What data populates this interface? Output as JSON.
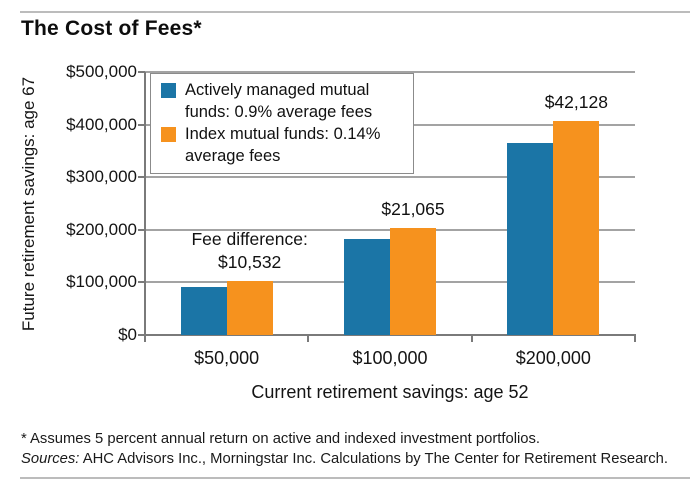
{
  "title": "The Cost of Fees*",
  "colors": {
    "active_bar": "#1b75a6",
    "index_bar": "#f6921e",
    "gridline": "#a3a3a3",
    "axis": "#7a7a7a",
    "rule": "#bcbcbc",
    "text": "#1a1a1a"
  },
  "chart_data": {
    "type": "bar",
    "title": "The Cost of Fees*",
    "categories": [
      "$50,000",
      "$100,000",
      "$200,000"
    ],
    "series": [
      {
        "name": "Actively managed mutual funds: 0.9% average fees",
        "color": "#1b75a6",
        "values": [
          91324,
          182648,
          365296
        ]
      },
      {
        "name": "Index mutual funds: 0.14% average fees",
        "color": "#f6921e",
        "values": [
          101856,
          203713,
          407424
        ]
      }
    ],
    "annotations": [
      {
        "group": 0,
        "lines": [
          "Fee difference:",
          "$10,532"
        ]
      },
      {
        "group": 1,
        "lines": [
          "$21,065"
        ]
      },
      {
        "group": 2,
        "lines": [
          "$42,128"
        ]
      }
    ],
    "xlabel": "Current retirement savings: age 52",
    "ylabel": "Future retirement savings: age 67",
    "ylim": [
      0,
      500000
    ],
    "ytick_step": 100000,
    "ytick_labels": [
      "$0",
      "$100,000",
      "$200,000",
      "$300,000",
      "$400,000",
      "$500,000"
    ],
    "grid": true,
    "legend_position": "top-left-inside"
  },
  "footer": {
    "footnote": "* Assumes 5 percent annual return on active and indexed investment portfolios.",
    "sources_label": "Sources:",
    "sources_text": " AHC Advisors Inc., Morningstar Inc. Calculations by The Center for Retirement Research."
  }
}
